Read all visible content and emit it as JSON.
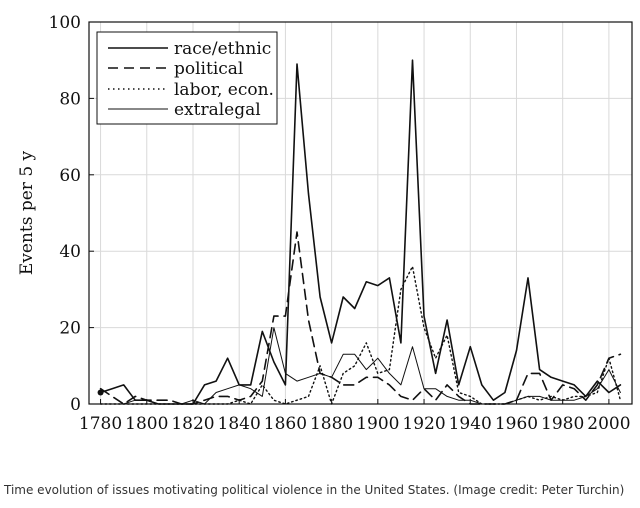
{
  "chart_data": {
    "type": "line",
    "title": "",
    "xlabel": "",
    "ylabel": "Events per 5 y",
    "xlim": [
      1775,
      2010
    ],
    "ylim": [
      0,
      100
    ],
    "x_ticks": [
      1780,
      1800,
      1820,
      1840,
      1860,
      1880,
      1900,
      1920,
      1940,
      1960,
      1980,
      2000
    ],
    "y_ticks": [
      0,
      20,
      40,
      60,
      80,
      100
    ],
    "grid": true,
    "legend_position": "top-left",
    "series": [
      {
        "name": "race/ethnic",
        "style": "solid",
        "x": [
          1780,
          1785,
          1790,
          1795,
          1800,
          1805,
          1810,
          1815,
          1820,
          1825,
          1830,
          1835,
          1840,
          1845,
          1850,
          1855,
          1860,
          1865,
          1870,
          1875,
          1880,
          1885,
          1890,
          1895,
          1900,
          1905,
          1910,
          1915,
          1920,
          1925,
          1930,
          1935,
          1940,
          1945,
          1950,
          1955,
          1960,
          1965,
          1970,
          1975,
          1980,
          1985,
          1990,
          1995,
          2000,
          2005
        ],
        "values": [
          3,
          4,
          5,
          1,
          1,
          0,
          0,
          0,
          0,
          5,
          6,
          12,
          5,
          5,
          19,
          11,
          5,
          89,
          55,
          28,
          16,
          28,
          25,
          32,
          31,
          33,
          16,
          90,
          23,
          8,
          22,
          5,
          15,
          5,
          1,
          3,
          14,
          33,
          9,
          7,
          6,
          5,
          2,
          6,
          3,
          5
        ]
      },
      {
        "name": "political",
        "style": "dashed",
        "x": [
          1780,
          1785,
          1790,
          1795,
          1800,
          1805,
          1810,
          1815,
          1820,
          1825,
          1830,
          1835,
          1840,
          1845,
          1850,
          1855,
          1860,
          1865,
          1870,
          1875,
          1880,
          1885,
          1890,
          1895,
          1900,
          1905,
          1910,
          1915,
          1920,
          1925,
          1930,
          1935,
          1940,
          1945,
          1950,
          1955,
          1960,
          1965,
          1970,
          1975,
          1980,
          1985,
          1990,
          1995,
          2000,
          2005
        ],
        "values": [
          4,
          2,
          0,
          2,
          1,
          1,
          1,
          0,
          0,
          1,
          2,
          2,
          1,
          2,
          6,
          23,
          23,
          45,
          22,
          8,
          7,
          5,
          5,
          7,
          7,
          5,
          2,
          1,
          4,
          1,
          5,
          2,
          0,
          0,
          0,
          0,
          1,
          8,
          8,
          1,
          5,
          4,
          1,
          5,
          12,
          13
        ]
      },
      {
        "name": "labor, econ.",
        "style": "dotted",
        "x": [
          1780,
          1785,
          1790,
          1795,
          1800,
          1805,
          1810,
          1815,
          1820,
          1825,
          1830,
          1835,
          1840,
          1845,
          1850,
          1855,
          1860,
          1865,
          1870,
          1875,
          1880,
          1885,
          1890,
          1895,
          1900,
          1905,
          1910,
          1915,
          1920,
          1925,
          1930,
          1935,
          1940,
          1945,
          1950,
          1955,
          1960,
          1965,
          1970,
          1975,
          1980,
          1985,
          1990,
          1995,
          2000,
          2005
        ],
        "values": [
          0,
          0,
          0,
          0,
          0,
          0,
          0,
          0,
          0,
          0,
          0,
          0,
          1,
          0,
          5,
          1,
          0,
          1,
          2,
          10,
          0,
          8,
          10,
          16,
          8,
          9,
          30,
          36,
          20,
          12,
          18,
          3,
          2,
          0,
          0,
          0,
          1,
          2,
          1,
          2,
          1,
          2,
          2,
          3,
          12,
          1
        ]
      },
      {
        "name": "extralegal",
        "style": "solid-thin",
        "x": [
          1780,
          1785,
          1790,
          1795,
          1800,
          1805,
          1810,
          1815,
          1820,
          1825,
          1830,
          1835,
          1840,
          1845,
          1850,
          1855,
          1860,
          1865,
          1870,
          1875,
          1880,
          1885,
          1890,
          1895,
          1900,
          1905,
          1910,
          1915,
          1920,
          1925,
          1930,
          1935,
          1940,
          1945,
          1950,
          1955,
          1960,
          1965,
          1970,
          1975,
          1980,
          1985,
          1990,
          1995,
          2000,
          2005
        ],
        "values": [
          0,
          0,
          0,
          1,
          1,
          0,
          0,
          0,
          1,
          0,
          3,
          4,
          5,
          4,
          2,
          20,
          8,
          6,
          7,
          8,
          7,
          13,
          13,
          9,
          12,
          8,
          5,
          15,
          4,
          4,
          2,
          1,
          1,
          0,
          0,
          0,
          1,
          2,
          2,
          1,
          1,
          1,
          2,
          4,
          9,
          3
        ]
      }
    ]
  },
  "caption": "Time evolution of issues motivating political violence in the United States. (Image credit: Peter Turchin)"
}
